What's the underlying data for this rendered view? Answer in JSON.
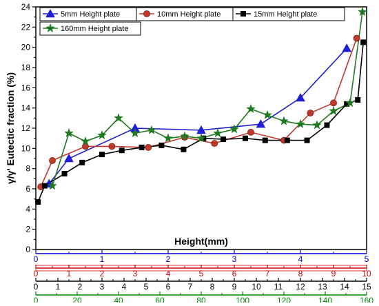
{
  "chart_data": {
    "type": "line",
    "title": "",
    "ylabel": "γ/γ' Eutectic fraction (%)",
    "xlabel": "Height(mm)",
    "ylim": [
      0,
      24
    ],
    "y_ticks": [
      "0",
      "2",
      "4",
      "6",
      "8",
      "10",
      "12",
      "14",
      "16",
      "18",
      "20",
      "22",
      "24"
    ],
    "x_axes": [
      {
        "xlim": [
          0,
          5
        ],
        "color": "#0000dd",
        "ticks": [
          "0",
          "1",
          "2",
          "3",
          "4",
          "5"
        ]
      },
      {
        "xlim": [
          0,
          10
        ],
        "color": "#cc0000",
        "ticks": [
          "0",
          "1",
          "2",
          "3",
          "4",
          "5",
          "6",
          "7",
          "8",
          "9",
          "10"
        ]
      },
      {
        "xlim": [
          0,
          15
        ],
        "color": "#000000",
        "ticks": [
          "0",
          "1",
          "2",
          "3",
          "4",
          "5",
          "6",
          "7",
          "8",
          "9",
          "10",
          "11",
          "12",
          "13",
          "14",
          "15"
        ]
      },
      {
        "xlim": [
          0,
          160
        ],
        "color": "#008800",
        "ticks": [
          "0",
          "20",
          "40",
          "60",
          "80",
          "100",
          "120",
          "140",
          "160"
        ]
      }
    ],
    "legend": {
      "placement": "top-left"
    },
    "series": [
      {
        "name": "5mm  Height plate",
        "color": "#1f1fd6",
        "marker": "triangle",
        "axis": 0,
        "x": [
          0.2,
          0.5,
          1.5,
          2.5,
          3.4,
          4.0,
          4.7
        ],
        "y": [
          6.5,
          9.0,
          12.0,
          11.8,
          12.4,
          15.0,
          19.9
        ]
      },
      {
        "name": "10mm  Height plate",
        "color": "#c0392b",
        "marker": "circle",
        "axis": 1,
        "x": [
          0.15,
          0.5,
          1.5,
          2.3,
          3.4,
          4.5,
          5.4,
          6.5,
          7.5,
          8.3,
          9.0,
          9.7
        ],
        "y": [
          6.2,
          8.8,
          10.2,
          10.2,
          10.1,
          11.1,
          10.5,
          11.6,
          10.8,
          13.5,
          14.5,
          20.9
        ]
      },
      {
        "name": "15mm  Height plate",
        "color": "#000000",
        "marker": "square",
        "axis": 2,
        "x": [
          0.1,
          0.4,
          1.3,
          2.1,
          3.0,
          3.9,
          4.8,
          5.7,
          6.7,
          7.6,
          8.5,
          9.5,
          10.4,
          11.4,
          12.3,
          13.2,
          14.1,
          14.6,
          14.85
        ],
        "y": [
          4.7,
          6.3,
          7.5,
          8.6,
          9.4,
          9.8,
          10.1,
          10.3,
          9.9,
          11.0,
          10.9,
          11.0,
          10.8,
          10.8,
          10.8,
          12.3,
          14.4,
          14.8,
          20.5
        ]
      },
      {
        "name": "160mm  Height plate",
        "color": "#1e7a1e",
        "marker": "star",
        "axis": 3,
        "x": [
          8,
          16,
          24,
          32,
          40,
          48,
          56,
          64,
          72,
          80,
          88,
          96,
          104,
          112,
          120,
          128,
          136,
          144,
          152,
          158
        ],
        "y": [
          6.3,
          11.5,
          10.7,
          11.3,
          13.0,
          11.5,
          11.8,
          11.0,
          11.2,
          11.0,
          11.5,
          11.9,
          13.9,
          13.3,
          12.7,
          12.4,
          12.3,
          13.7,
          14.5,
          23.5
        ]
      }
    ]
  }
}
